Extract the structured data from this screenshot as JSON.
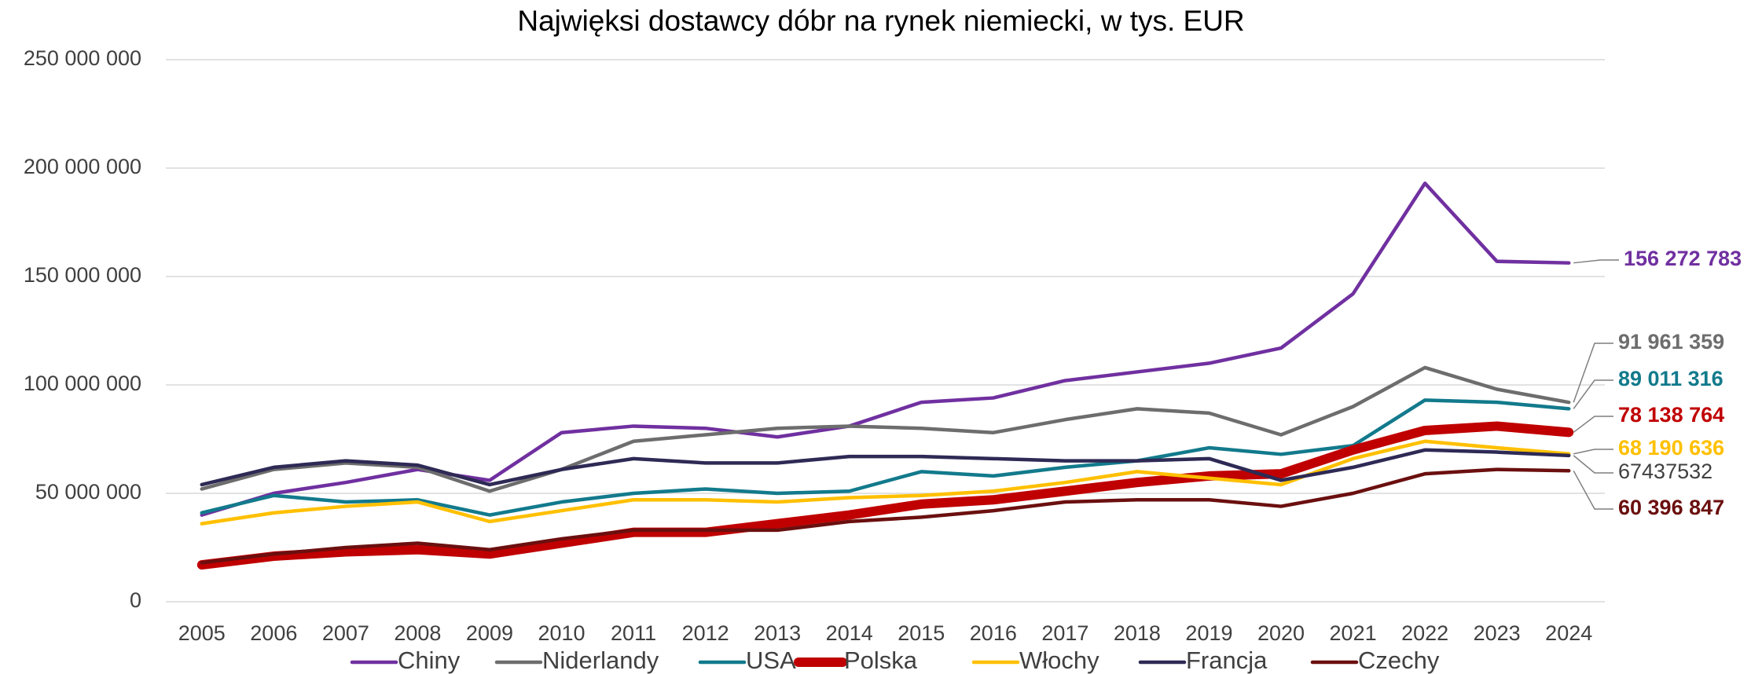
{
  "chart_data": {
    "type": "line",
    "title": "Najwięksi dostawcy dóbr na rynek niemiecki,  w tys. EUR",
    "categories": [
      "2005",
      "2006",
      "2007",
      "2008",
      "2009",
      "2010",
      "2011",
      "2012",
      "2013",
      "2014",
      "2015",
      "2016",
      "2017",
      "2018",
      "2019",
      "2020",
      "2021",
      "2022",
      "2023",
      "2024"
    ],
    "ylim": [
      0,
      250000000
    ],
    "yticks": [
      0,
      {
        "value": 50000000,
        "label": "50 000 000"
      },
      {
        "value": 100000000,
        "label": "100 000 000"
      },
      {
        "value": 150000000,
        "label": "150 000 000"
      },
      {
        "value": 200000000,
        "label": "200 000 000"
      },
      {
        "value": 250000000,
        "label": "250 000 000"
      }
    ],
    "grid": true,
    "legend": "bottom",
    "series": [
      {
        "name": "Chiny",
        "color": "#7030a0",
        "values": [
          40000000,
          50000000,
          55000000,
          61000000,
          56000000,
          78000000,
          81000000,
          80000000,
          76000000,
          81000000,
          92000000,
          94000000,
          102000000,
          106000000,
          110000000,
          117000000,
          142000000,
          193000000,
          157000000,
          156272783
        ],
        "value_labels": [
          null,
          null,
          null,
          null,
          null,
          null,
          null,
          null,
          null,
          null,
          null,
          null,
          null,
          null,
          null,
          null,
          null,
          null,
          null,
          "156 272 783"
        ]
      },
      {
        "name": "Niderlandy",
        "color": "#6d6d6d",
        "values": [
          52000000,
          61000000,
          64000000,
          62000000,
          51000000,
          61000000,
          74000000,
          77000000,
          80000000,
          81000000,
          80000000,
          78000000,
          84000000,
          89000000,
          87000000,
          77000000,
          90000000,
          108000000,
          98000000,
          91961359
        ],
        "value_labels": [
          null,
          null,
          null,
          null,
          null,
          null,
          null,
          null,
          null,
          null,
          null,
          null,
          null,
          null,
          null,
          null,
          null,
          null,
          null,
          "91 961 359"
        ]
      },
      {
        "name": "USA",
        "color": "#127a8c",
        "values": [
          41000000,
          49000000,
          46000000,
          47000000,
          40000000,
          46000000,
          50000000,
          52000000,
          50000000,
          51000000,
          60000000,
          58000000,
          62000000,
          65000000,
          71000000,
          68000000,
          72000000,
          93000000,
          92000000,
          89011316
        ],
        "value_labels": [
          null,
          null,
          null,
          null,
          null,
          null,
          null,
          null,
          null,
          null,
          null,
          null,
          null,
          null,
          null,
          null,
          null,
          null,
          null,
          "89 011 316"
        ]
      },
      {
        "name": "Polska",
        "color": "#c00000",
        "values": [
          17000000,
          21000000,
          23000000,
          24000000,
          22000000,
          27000000,
          32000000,
          32000000,
          36000000,
          40000000,
          45000000,
          47000000,
          51000000,
          55000000,
          58000000,
          59000000,
          70000000,
          79000000,
          81000000,
          78138764
        ],
        "value_labels": [
          null,
          null,
          null,
          null,
          null,
          null,
          null,
          null,
          null,
          null,
          null,
          null,
          null,
          null,
          null,
          null,
          null,
          null,
          null,
          "78 138 764"
        ]
      },
      {
        "name": "Włochy",
        "color": "#ffc000",
        "values": [
          36000000,
          41000000,
          44000000,
          46000000,
          37000000,
          42000000,
          47000000,
          47000000,
          46000000,
          48000000,
          49000000,
          51000000,
          55000000,
          60000000,
          57000000,
          54000000,
          66000000,
          74000000,
          71000000,
          68190636
        ],
        "value_labels": [
          null,
          null,
          null,
          null,
          null,
          null,
          null,
          null,
          null,
          null,
          null,
          null,
          null,
          null,
          null,
          null,
          null,
          null,
          null,
          "68 190 636"
        ]
      },
      {
        "name": "Francja",
        "color": "#2e2a55",
        "values": [
          54000000,
          62000000,
          65000000,
          63000000,
          54000000,
          61000000,
          66000000,
          64000000,
          64000000,
          67000000,
          67000000,
          66000000,
          65000000,
          65000000,
          66000000,
          56000000,
          62000000,
          70000000,
          69000000,
          67437532
        ]
      },
      {
        "name": "Czechy",
        "color": "#6b0f0f",
        "values": [
          18000000,
          22000000,
          25000000,
          27000000,
          24000000,
          29000000,
          33000000,
          33000000,
          33000000,
          37000000,
          39000000,
          42000000,
          46000000,
          47000000,
          47000000,
          44000000,
          50000000,
          59000000,
          61000000,
          60396847
        ],
        "value_labels": [
          null,
          null,
          null,
          null,
          null,
          null,
          null,
          null,
          null,
          null,
          null,
          null,
          null,
          null,
          null,
          null,
          null,
          null,
          null,
          "60 396 847"
        ]
      }
    ]
  }
}
